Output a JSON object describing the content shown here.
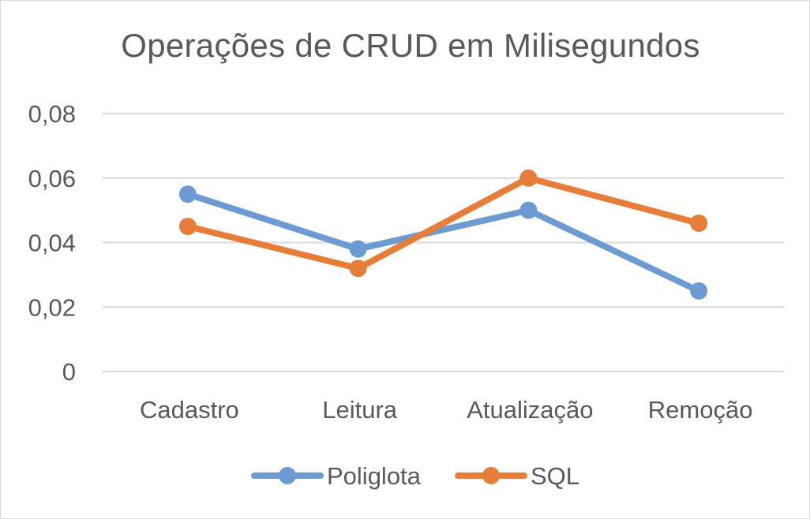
{
  "chart_data": {
    "type": "line",
    "title": "Operações de CRUD em Milisegundos",
    "xlabel": "",
    "ylabel": "",
    "categories": [
      "Cadastro",
      "Leitura",
      "Atualização",
      "Remoção"
    ],
    "series": [
      {
        "name": "Poliglota",
        "values": [
          0.055,
          0.038,
          0.05,
          0.025
        ],
        "color": "#6c9bd2"
      },
      {
        "name": "SQL",
        "values": [
          0.045,
          0.032,
          0.06,
          0.046
        ],
        "color": "#e67e3a"
      }
    ],
    "ylim": [
      0,
      0.08
    ],
    "yticks": [
      "0",
      "0,02",
      "0,04",
      "0,06",
      "0,08"
    ],
    "ytick_values": [
      0,
      0.02,
      0.04,
      0.06,
      0.08
    ],
    "grid": true,
    "legend_position": "bottom",
    "gridline_color": "#d9d9d9",
    "text_color": "#595959"
  }
}
